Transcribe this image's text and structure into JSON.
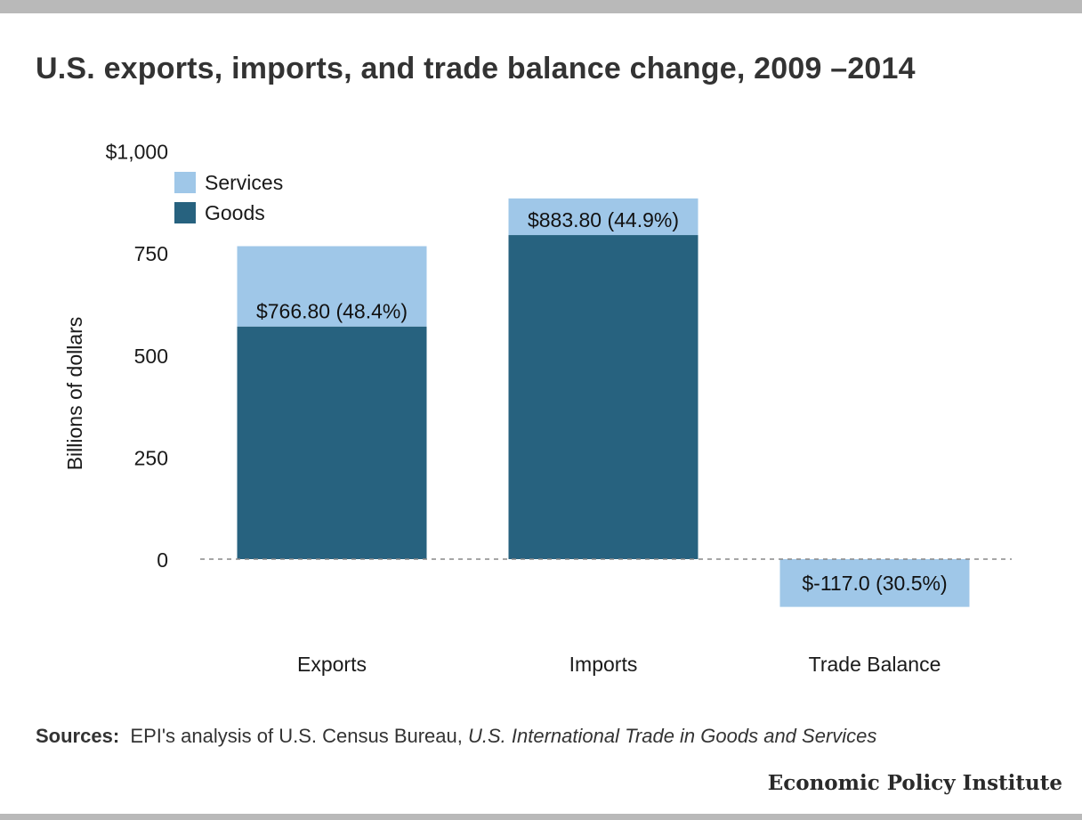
{
  "title": "U.S. exports, imports, and trade balance change, 2009 –2014",
  "sources": {
    "label": "Sources:",
    "text": "EPI's analysis of U.S. Census Bureau, ",
    "italic_text": "U.S. International Trade in Goods and Services"
  },
  "brand": "Economic Policy Institute",
  "colors": {
    "goods": "#27627f",
    "services": "#9fc7e8",
    "zero_line": "#888888"
  },
  "chart_data": {
    "type": "bar",
    "stacked": true,
    "categories": [
      "Exports",
      "Imports",
      "Trade Balance"
    ],
    "series": [
      {
        "name": "Goods",
        "values": [
          570,
          794,
          0
        ]
      },
      {
        "name": "Services",
        "values": [
          196.8,
          89.8,
          -117.0
        ]
      }
    ],
    "data_labels": [
      "$766.80 (48.4%)",
      "$883.80 (44.9%)",
      "$-117.0 (30.5%)"
    ],
    "ylabel": "Billions of dollars",
    "xlabel": "",
    "ylim": [
      -130,
      1000
    ],
    "yticks": [
      0,
      250,
      500,
      750,
      1000
    ],
    "ytick_labels": [
      "0",
      "250",
      "500",
      "750",
      "$1,000"
    ],
    "legend": {
      "position": "top-left",
      "order": [
        "Services",
        "Goods"
      ]
    },
    "grid": false,
    "zero_line": "dashed"
  }
}
